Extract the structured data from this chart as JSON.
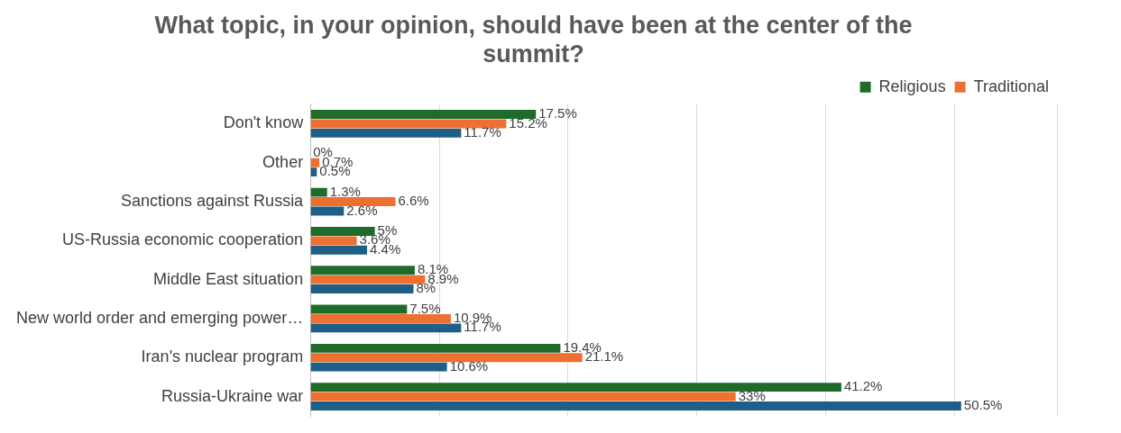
{
  "chart_data": {
    "type": "bar",
    "orientation": "horizontal",
    "title": "What topic, in your opinion, should have been at the center of the summit?",
    "categories": [
      "Don't know",
      "Other",
      "Sanctions against Russia",
      "US-Russia economic cooperation",
      "Middle East situation",
      "New world order and emerging power…",
      "Iran's nuclear program",
      "Russia-Ukraine war"
    ],
    "series": [
      {
        "name": "Religious",
        "color": "#1e6b2a",
        "values": [
          17.5,
          0,
          1.3,
          5,
          8.1,
          7.5,
          19.4,
          41.2
        ],
        "value_labels": [
          "17.5%",
          "0%",
          "1.3%",
          "5%",
          "8.1%",
          "7.5%",
          "19.4%",
          "41.2%"
        ]
      },
      {
        "name": "Traditional",
        "color": "#ed7030",
        "values": [
          15.2,
          0.7,
          6.6,
          3.6,
          8.9,
          10.9,
          21.1,
          33
        ],
        "value_labels": [
          "15.2%",
          "0.7%",
          "6.6%",
          "3.6%",
          "8.9%",
          "10.9%",
          "21.1%",
          "33%"
        ]
      },
      {
        "color": "#1d5f86",
        "values": [
          11.7,
          0.5,
          2.6,
          4.4,
          8,
          11.7,
          10.6,
          50.5
        ],
        "value_labels": [
          "11.7%",
          "0.5%",
          "2.6%",
          "4.4%",
          "8%",
          "11.7%",
          "10.6%",
          "50.5%"
        ]
      }
    ],
    "xlim": [
      0,
      58
    ],
    "xticks": [
      {
        "value": 0,
        "label": null
      },
      {
        "value": 10,
        "label": null
      },
      {
        "value": 20,
        "label": null
      },
      {
        "value": 30,
        "label": null
      },
      {
        "value": 40,
        "label": null
      },
      {
        "value": 50,
        "label": null
      }
    ],
    "tick_labels": "y",
    "grid": "x",
    "legend": "top right"
  }
}
